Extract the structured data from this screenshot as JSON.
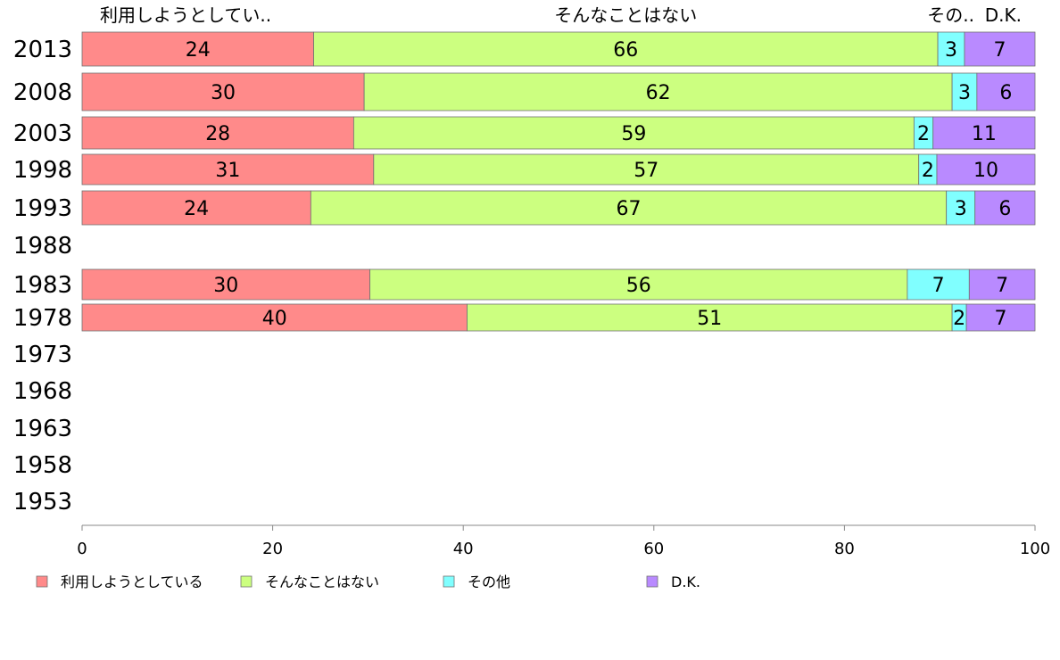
{
  "chart_data": {
    "type": "bar",
    "orientation": "horizontal",
    "stacked": true,
    "categories": [
      "2013",
      "2008",
      "2003",
      "1998",
      "1993",
      "1988",
      "1983",
      "1978",
      "1973",
      "1968",
      "1963",
      "1958",
      "1953"
    ],
    "series": [
      {
        "name": "利用しようとしている",
        "top_label": "利用しようとしてい..",
        "color": "#ff8a8a",
        "values": [
          24,
          30,
          28,
          31,
          24,
          null,
          30,
          40,
          null,
          null,
          null,
          null,
          null
        ],
        "precise": [
          24.3,
          29.6,
          28.5,
          30.6,
          24.0,
          null,
          30.2,
          40.4,
          null,
          null,
          null,
          null,
          null
        ]
      },
      {
        "name": "そんなことはない",
        "top_label": "そんなことはない",
        "color": "#ccff80",
        "values": [
          66,
          62,
          59,
          57,
          67,
          null,
          56,
          51,
          null,
          null,
          null,
          null,
          null
        ],
        "precise": [
          65.5,
          61.7,
          58.8,
          57.2,
          66.7,
          null,
          56.4,
          50.9,
          null,
          null,
          null,
          null,
          null
        ]
      },
      {
        "name": "その他",
        "top_label": "その..",
        "color": "#80ffff",
        "values": [
          3,
          3,
          2,
          2,
          3,
          null,
          7,
          2,
          null,
          null,
          null,
          null,
          null
        ],
        "precise": [
          2.8,
          2.6,
          2.0,
          1.9,
          3.0,
          null,
          6.5,
          1.5,
          null,
          null,
          null,
          null,
          null
        ]
      },
      {
        "name": "D.K.",
        "top_label": "D.K.",
        "color": "#b98aff",
        "values": [
          7,
          6,
          11,
          10,
          6,
          null,
          7,
          7,
          null,
          null,
          null,
          null,
          null
        ],
        "precise": [
          7.4,
          6.1,
          10.7,
          10.3,
          6.3,
          null,
          6.9,
          7.2,
          null,
          null,
          null,
          null,
          null
        ]
      }
    ],
    "xlim": [
      0,
      100
    ],
    "xticks": [
      "0",
      "20",
      "40",
      "60",
      "80",
      "100"
    ],
    "xlabel": "",
    "ylabel": "",
    "title": "",
    "grid": false,
    "legend_position": "bottom-left"
  }
}
